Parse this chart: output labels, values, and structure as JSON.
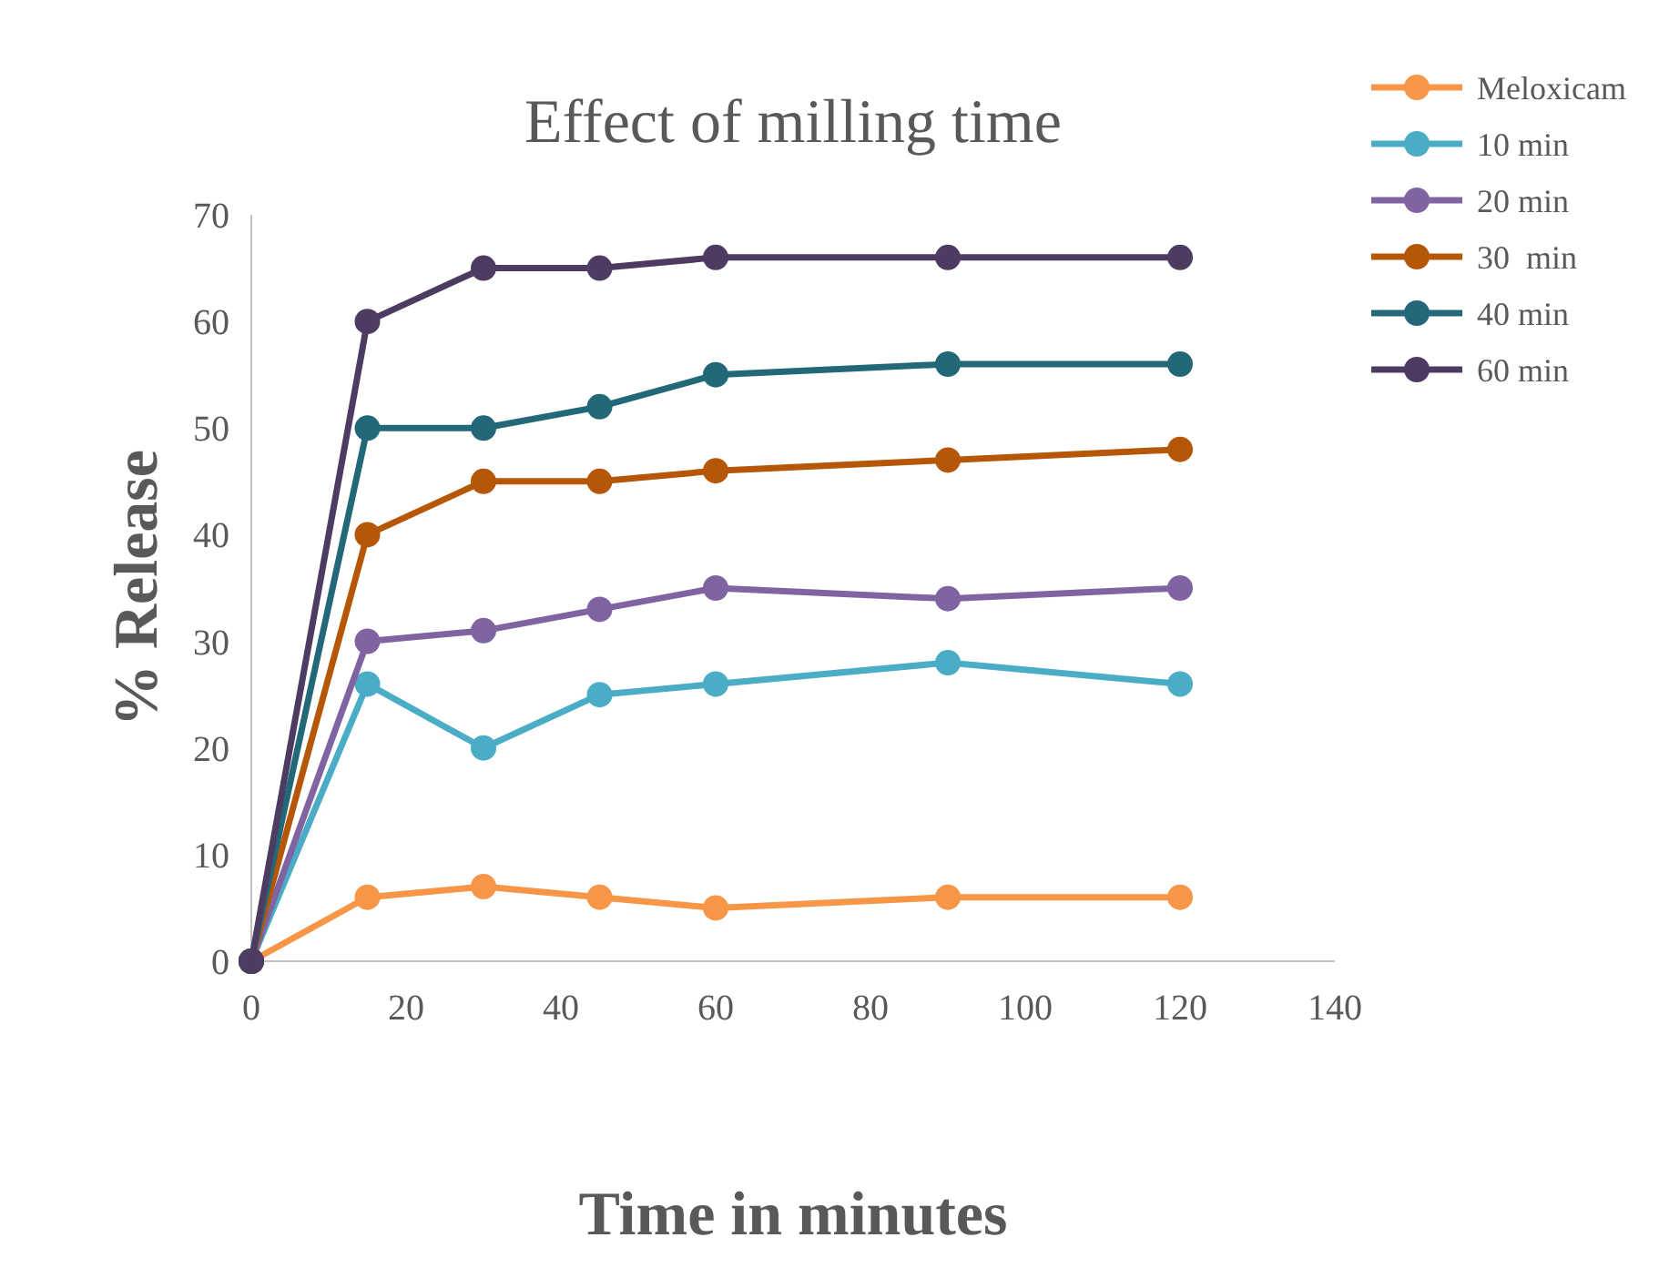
{
  "chart_data": {
    "type": "line",
    "title": "Effect of milling time",
    "xlabel": "Time in minutes",
    "ylabel": "% Release",
    "x": [
      0,
      15,
      30,
      45,
      60,
      90,
      120
    ],
    "series": [
      {
        "name": "Meloxicam",
        "color": "#f79646",
        "values": [
          0,
          6,
          7,
          6,
          5,
          6,
          6
        ]
      },
      {
        "name": "10 min",
        "color": "#4bacc6",
        "values": [
          0,
          26,
          20,
          25,
          26,
          28,
          26
        ]
      },
      {
        "name": "20 min",
        "color": "#8064a2",
        "values": [
          0,
          30,
          31,
          33,
          35,
          34,
          35
        ]
      },
      {
        "name": "30  min",
        "color": "#b65708",
        "values": [
          0,
          40,
          45,
          45,
          46,
          47,
          48
        ]
      },
      {
        "name": "40 min",
        "color": "#226878",
        "values": [
          0,
          50,
          50,
          52,
          55,
          56,
          56
        ]
      },
      {
        "name": "60 min",
        "color": "#4d3b62",
        "values": [
          0,
          60,
          65,
          65,
          66,
          66,
          66
        ]
      }
    ],
    "xlim": [
      0,
      140
    ],
    "xticks": [
      0,
      20,
      40,
      60,
      80,
      100,
      120,
      140
    ],
    "ylim": [
      0,
      70
    ],
    "yticks": [
      0,
      10,
      20,
      30,
      40,
      50,
      60,
      70
    ],
    "grid": false,
    "legend": "top right",
    "marker": "circle",
    "line_style": "solid"
  }
}
